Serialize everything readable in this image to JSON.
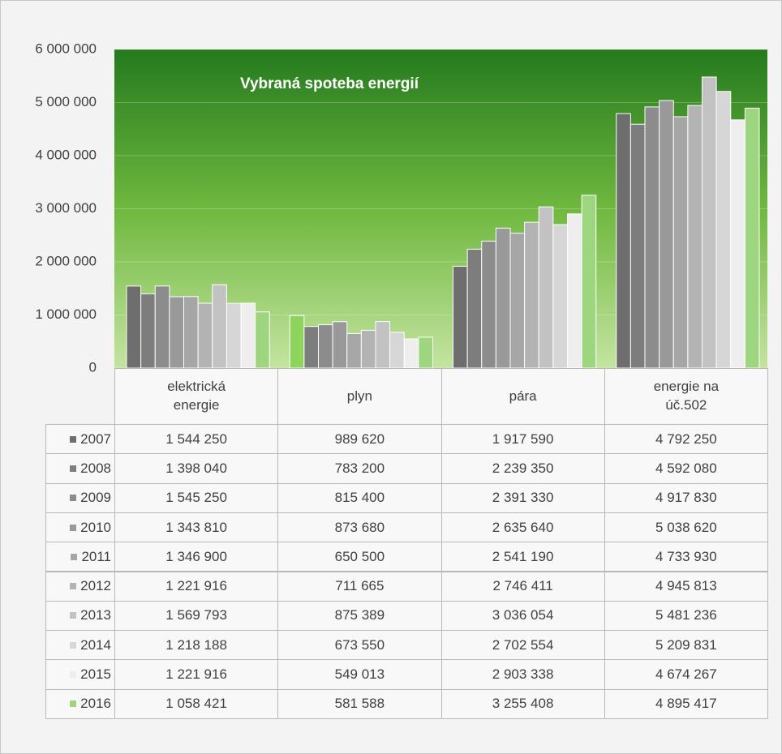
{
  "chart_data": {
    "type": "bar",
    "title": "Vybraná spoteba energií",
    "categories": [
      "elektrická energie",
      "plyn",
      "pára",
      "energie na úč.502"
    ],
    "ylim": [
      0,
      6000000
    ],
    "yticks": [
      {
        "value": 0,
        "label": "0"
      },
      {
        "value": 1000000,
        "label": "1 000 000"
      },
      {
        "value": 2000000,
        "label": "2 000 000"
      },
      {
        "value": 3000000,
        "label": "3 000 000"
      },
      {
        "value": 4000000,
        "label": "4 000 000"
      },
      {
        "value": 5000000,
        "label": "5 000 000"
      },
      {
        "value": 6000000,
        "label": "6 000 000"
      }
    ],
    "grid": true,
    "series": [
      {
        "name": "2007",
        "color": "#6e6e6e",
        "colors": [
          "#6e6e6e",
          "#8ed35c",
          "#6e6e6e",
          "#6e6e6e"
        ],
        "values": [
          1544250,
          989620,
          1917590,
          4792250
        ],
        "value_labels": [
          "1 544 250",
          "989 620",
          "1 917 590",
          "4 792 250"
        ]
      },
      {
        "name": "2008",
        "color": "#7d7d7d",
        "values": [
          1398040,
          783200,
          2239350,
          4592080
        ],
        "value_labels": [
          "1 398 040",
          "783 200",
          "2 239 350",
          "4 592 080"
        ]
      },
      {
        "name": "2009",
        "color": "#8c8c8c",
        "values": [
          1545250,
          815400,
          2391330,
          4917830
        ],
        "value_labels": [
          "1 545 250",
          "815 400",
          "2 391 330",
          "4 917 830"
        ]
      },
      {
        "name": "2010",
        "color": "#999999",
        "values": [
          1343810,
          873680,
          2635640,
          5038620
        ],
        "value_labels": [
          "1 343 810",
          "873 680",
          "2 635 640",
          "5 038 620"
        ]
      },
      {
        "name": "2011",
        "color": "#a6a6a6",
        "values": [
          1346900,
          650500,
          2541190,
          4733930
        ],
        "value_labels": [
          "1 346 900",
          "650 500",
          "2 541 190",
          "4 733 930"
        ]
      },
      {
        "name": "2012",
        "color": "#b3b3b3",
        "values": [
          1221916,
          711665,
          2746411,
          4945813
        ],
        "value_labels": [
          "1 221 916",
          "711 665",
          "2 746 411",
          "4 945 813"
        ]
      },
      {
        "name": "2013",
        "color": "#c2c2c2",
        "values": [
          1569793,
          875389,
          3036054,
          5481236
        ],
        "value_labels": [
          "1 569 793",
          "875 389",
          "3 036 054",
          "5 481 236"
        ]
      },
      {
        "name": "2014",
        "color": "#d6d6d6",
        "values": [
          1218188,
          673550,
          2702554,
          5209831
        ],
        "value_labels": [
          "1 218 188",
          "673 550",
          "2 702 554",
          "5 209 831"
        ]
      },
      {
        "name": "2015",
        "color": "#eeeeee",
        "values": [
          1221916,
          549013,
          2903338,
          4674267
        ],
        "value_labels": [
          "1 221 916",
          "549 013",
          "2 903 338",
          "4 674 267"
        ]
      },
      {
        "name": "2016",
        "color": "#9ed680",
        "values": [
          1058421,
          581588,
          3255408,
          4895417
        ],
        "value_labels": [
          "1 058 421",
          "581 588",
          "3 255 408",
          "4 895 417"
        ]
      }
    ]
  }
}
